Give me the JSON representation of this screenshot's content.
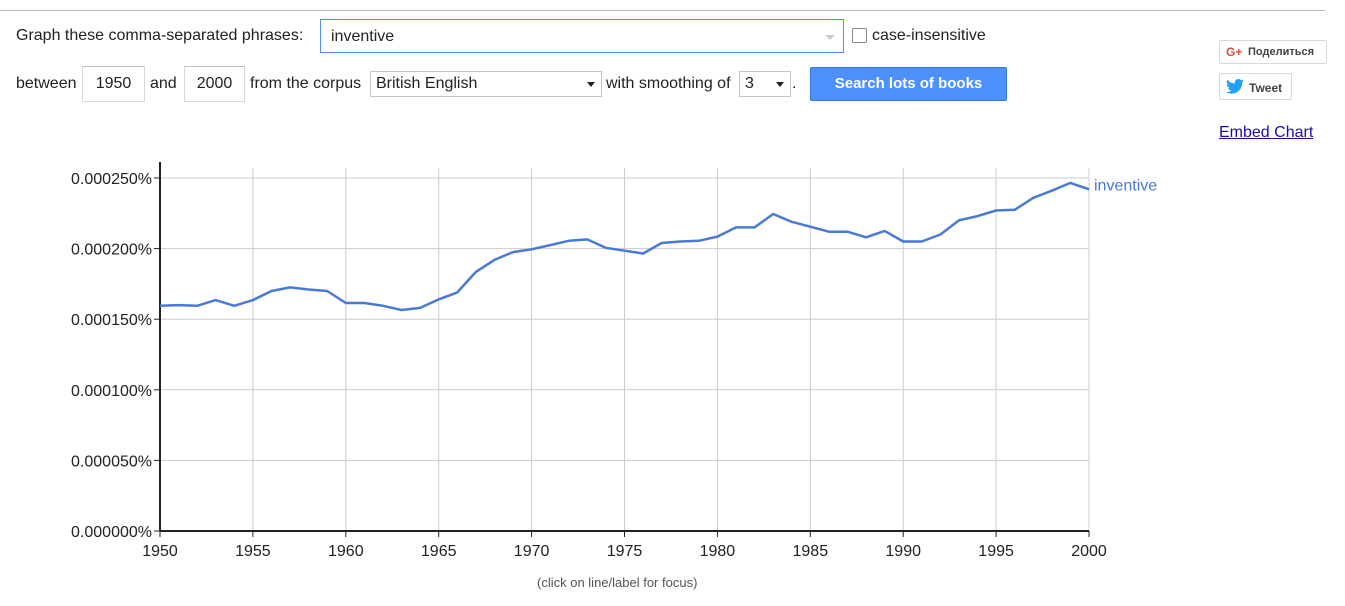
{
  "controls": {
    "graph_label": "Graph these comma-separated phrases:",
    "phrase_value": "inventive",
    "case_label": "case-insensitive",
    "case_checked": false,
    "between_label": "between",
    "year_start": "1950",
    "and_label": "and",
    "year_end": "2000",
    "corpus_label": "from the corpus",
    "corpus_value": "British English",
    "smoothing_label": "with smoothing of",
    "smoothing_value": "3",
    "period": ".",
    "search_label": "Search lots of books"
  },
  "social": {
    "gplus_icon": "G+",
    "gplus_label": "Поделиться",
    "tweet_label": "Tweet",
    "embed_label": "Embed Chart"
  },
  "footer": "(click on line/label for focus)",
  "colors": {
    "line": "#4a7ad8",
    "button": "#4d90fe",
    "grid": "#cccccc"
  },
  "chart_data": {
    "type": "line",
    "xlim": [
      1950,
      2000
    ],
    "ylim": [
      0,
      0.00025
    ],
    "x_ticks": [
      1950,
      1955,
      1960,
      1965,
      1970,
      1975,
      1980,
      1985,
      1990,
      1995,
      2000
    ],
    "y_ticks": [
      0,
      5e-05,
      0.0001,
      0.00015,
      0.0002,
      0.00025
    ],
    "y_tick_labels": [
      "0.000000%",
      "0.000050%",
      "0.000100%",
      "0.000150%",
      "0.000200%",
      "0.000250%"
    ],
    "series": [
      {
        "name": "inventive",
        "x": [
          1950,
          1951,
          1952,
          1953,
          1954,
          1955,
          1956,
          1957,
          1958,
          1959,
          1960,
          1961,
          1962,
          1963,
          1964,
          1965,
          1966,
          1967,
          1968,
          1969,
          1970,
          1971,
          1972,
          1973,
          1974,
          1975,
          1976,
          1977,
          1978,
          1979,
          1980,
          1981,
          1982,
          1983,
          1984,
          1985,
          1986,
          1987,
          1988,
          1989,
          1990,
          1991,
          1992,
          1993,
          1994,
          1995,
          1996,
          1997,
          1998,
          1999,
          2000
        ],
        "values": [
          0.0001595,
          0.00016,
          0.0001595,
          0.0001635,
          0.0001595,
          0.0001635,
          0.00017,
          0.0001725,
          0.000171,
          0.00017,
          0.0001615,
          0.0001615,
          0.0001595,
          0.0001565,
          0.000158,
          0.000164,
          0.000169,
          0.0001835,
          0.000192,
          0.0001975,
          0.0001995,
          0.0002025,
          0.0002055,
          0.0002065,
          0.0002005,
          0.0001985,
          0.0001965,
          0.000204,
          0.000205,
          0.0002055,
          0.0002085,
          0.000215,
          0.000215,
          0.0002245,
          0.000219,
          0.0002155,
          0.000212,
          0.000212,
          0.000208,
          0.0002125,
          0.000205,
          0.000205,
          0.00021,
          0.00022,
          0.000223,
          0.000227,
          0.0002275,
          0.000236,
          0.000241,
          0.0002465,
          0.000242
        ]
      }
    ]
  }
}
